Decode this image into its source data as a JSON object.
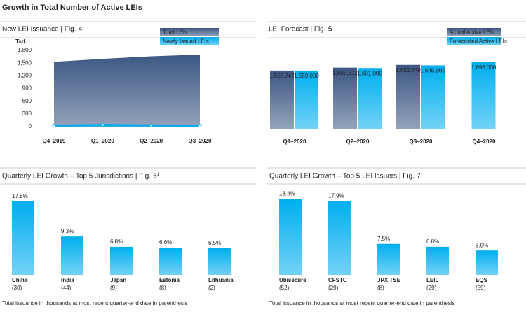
{
  "title": "Growth in Total Number of Active LEIs",
  "chart_data": [
    {
      "type": "area",
      "title": "New LEI Issuance | Fig.-4",
      "y_unit": "Tsd.",
      "categories": [
        "Q4–2019",
        "Q1–2020",
        "Q2–2020",
        "Q3–2020"
      ],
      "series": [
        {
          "name": "Total LEIs",
          "color": "#3b5783",
          "values": [
            1530,
            1600,
            1660,
            1700
          ]
        },
        {
          "name": "Newly Issued LEIs",
          "color": "#00aeef",
          "values": [
            25,
            45,
            30,
            25
          ],
          "marker": true
        }
      ],
      "ylim": [
        0,
        1800
      ],
      "yticks": [
        0,
        300,
        600,
        900,
        {
          "value": 1200,
          "label": "1,200"
        },
        {
          "value": 1500,
          "label": "1,500"
        },
        {
          "value": 1800,
          "label": "1,800"
        }
      ]
    },
    {
      "type": "bar",
      "title": "LEI Forecast | Fig.-5",
      "categories": [
        "Q1–2020",
        "Q2–2020",
        "Q3–2020",
        "Q4–2020"
      ],
      "series": [
        {
          "name": "Actual Active LEIs",
          "color": "#3b5783",
          "values": [
            1558747,
            1607612,
            1652649,
            null
          ],
          "value_labels": [
            "1,558,747",
            "1,607,612",
            "1,652,649",
            null
          ]
        },
        {
          "name": "Forecasted Active LEIs",
          "color": "#00aeef",
          "values": [
            1559000,
            1601000,
            1645000,
            1696000
          ],
          "value_labels": [
            "1,559,000",
            "1,601,000",
            "1,645,000",
            "1,696,000"
          ]
        }
      ],
      "ylim": [
        600000,
        1800000
      ]
    },
    {
      "type": "bar",
      "title": "Quarterly LEI Growth – Top 5 Jurisdictions | Fig.-6",
      "title_note": "1",
      "categories": [
        "China",
        "India",
        "Japan",
        "Estonia",
        "Lithuania"
      ],
      "category_notes": [
        "(30)",
        "(44)",
        "(9)",
        "(8)",
        "(2)"
      ],
      "values": [
        17.8,
        9.3,
        6.8,
        6.6,
        6.5
      ],
      "value_labels": [
        "17.8%",
        "9.3%",
        "6.8%",
        "6.6%",
        "6.5%"
      ],
      "color": "#00aeef",
      "ylim": [
        0,
        20
      ],
      "note": "Total issuance in thousands at most recent quarter-end date in parenthesis"
    },
    {
      "type": "bar",
      "title": "Quarterly LEI Growth – Top 5 LEI Issuers | Fig.-7",
      "categories": [
        "Ubisecure",
        "CFSTC",
        "JPX TSE",
        "LEIL",
        "EQS"
      ],
      "category_notes": [
        "(52)",
        "(29)",
        "(8)",
        "(29)",
        "(59)"
      ],
      "values": [
        18.4,
        17.9,
        7.5,
        6.8,
        5.9
      ],
      "value_labels": [
        "18.4%",
        "17.9%",
        "7.5%",
        "6.8%",
        "5.9%"
      ],
      "color": "#00aeef",
      "ylim": [
        0,
        20
      ],
      "note": "Total issuance in thousands at most recent quarter-end date in parenthesis"
    }
  ]
}
